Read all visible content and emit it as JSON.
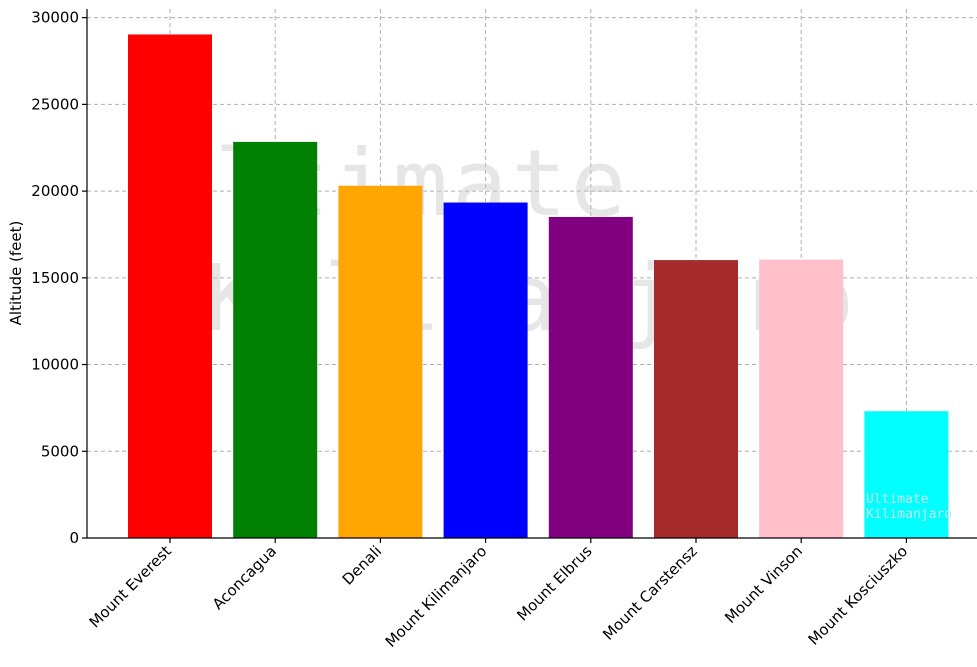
{
  "chart_data": {
    "type": "bar",
    "title": "",
    "xlabel": "",
    "ylabel": "Altitude (feet)",
    "ylim": [
      0,
      30500
    ],
    "yticks": [
      0,
      5000,
      10000,
      15000,
      20000,
      25000,
      30000
    ],
    "grid": true,
    "categories": [
      "Mount Everest",
      "Aconcagua",
      "Denali",
      "Mount Kilimanjaro",
      "Mount Elbrus",
      "Mount Carstensz",
      "Mount Vinson",
      "Mount Kosciuszko"
    ],
    "values": [
      29032,
      22838,
      20310,
      19341,
      18510,
      16024,
      16050,
      7310
    ],
    "colors": [
      "#ff0000",
      "#008000",
      "#ffa500",
      "#0000ff",
      "#800080",
      "#a52a2a",
      "#ffc0cb",
      "#00ffff"
    ]
  },
  "watermark": {
    "line1": "Ultimate",
    "line2": "Kilimanjaro"
  }
}
